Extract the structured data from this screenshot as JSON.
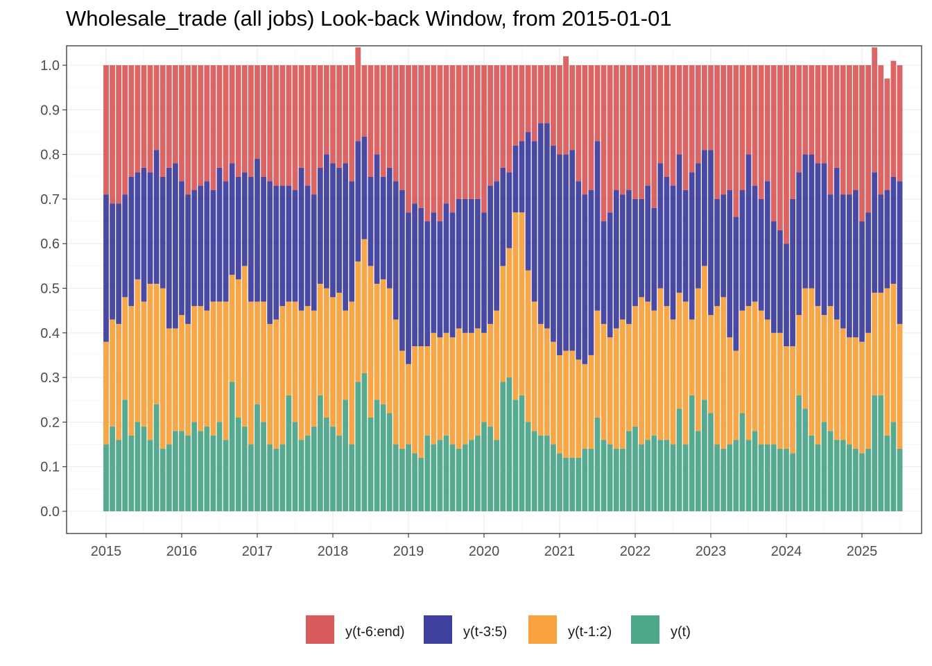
{
  "chart_data": {
    "type": "bar",
    "stacked": true,
    "title": "Wholesale_trade (all jobs) Look-back Window, from 2015-01-01",
    "xlabel": "",
    "ylabel": "",
    "ylim": [
      0,
      1.0
    ],
    "y_ticks": [
      "0.0",
      "0.1",
      "0.2",
      "0.3",
      "0.4",
      "0.5",
      "0.6",
      "0.7",
      "0.8",
      "0.9",
      "1.0"
    ],
    "x_ticks": [
      "2015",
      "2016",
      "2017",
      "2018",
      "2019",
      "2020",
      "2021",
      "2022",
      "2023",
      "2024",
      "2025"
    ],
    "x_start": "2015-01",
    "x_end": "2025-04",
    "frequency": "monthly",
    "grid": true,
    "legend_position": "bottom",
    "series": [
      {
        "name": "y(t)",
        "color": "#4da58a",
        "values": [
          0.15,
          0.19,
          0.16,
          0.25,
          0.17,
          0.2,
          0.19,
          0.16,
          0.24,
          0.14,
          0.15,
          0.18,
          0.18,
          0.17,
          0.2,
          0.18,
          0.19,
          0.17,
          0.2,
          0.16,
          0.29,
          0.21,
          0.19,
          0.15,
          0.24,
          0.2,
          0.15,
          0.14,
          0.15,
          0.26,
          0.2,
          0.16,
          0.17,
          0.19,
          0.26,
          0.21,
          0.19,
          0.17,
          0.25,
          0.15,
          0.29,
          0.31,
          0.21,
          0.25,
          0.24,
          0.22,
          0.15,
          0.14,
          0.15,
          0.13,
          0.12,
          0.17,
          0.15,
          0.16,
          0.17,
          0.15,
          0.14,
          0.15,
          0.16,
          0.17,
          0.2,
          0.19,
          0.16,
          0.29,
          0.3,
          0.25,
          0.26,
          0.2,
          0.18,
          0.17,
          0.17,
          0.15,
          0.13,
          0.12,
          0.12,
          0.12,
          0.14,
          0.14,
          0.21,
          0.16,
          0.15,
          0.14,
          0.14,
          0.18,
          0.19,
          0.15,
          0.16,
          0.17,
          0.16,
          0.16,
          0.15,
          0.23,
          0.15,
          0.26,
          0.18,
          0.25,
          0.22,
          0.15,
          0.14,
          0.15,
          0.16,
          0.22,
          0.16,
          0.18,
          0.15,
          0.15,
          0.15,
          0.14,
          0.14,
          0.13,
          0.26,
          0.23,
          0.17,
          0.15,
          0.2,
          0.18,
          0.16,
          0.16,
          0.15,
          0.14,
          0.13,
          0.14,
          0.26,
          0.26,
          0.17,
          0.2,
          0.14
        ]
      },
      {
        "name": "y(t-1:2)",
        "color": "#f8a23e",
        "values": [
          0.23,
          0.24,
          0.26,
          0.23,
          0.29,
          0.32,
          0.28,
          0.35,
          0.27,
          0.36,
          0.26,
          0.23,
          0.26,
          0.25,
          0.26,
          0.28,
          0.26,
          0.3,
          0.27,
          0.31,
          0.24,
          0.31,
          0.36,
          0.32,
          0.23,
          0.27,
          0.27,
          0.29,
          0.31,
          0.21,
          0.27,
          0.29,
          0.29,
          0.26,
          0.25,
          0.29,
          0.29,
          0.32,
          0.2,
          0.32,
          0.27,
          0.3,
          0.34,
          0.26,
          0.28,
          0.28,
          0.28,
          0.22,
          0.18,
          0.24,
          0.25,
          0.2,
          0.25,
          0.23,
          0.23,
          0.24,
          0.27,
          0.25,
          0.24,
          0.24,
          0.2,
          0.23,
          0.29,
          0.26,
          0.29,
          0.42,
          0.41,
          0.34,
          0.29,
          0.25,
          0.24,
          0.23,
          0.22,
          0.24,
          0.24,
          0.22,
          0.19,
          0.21,
          0.24,
          0.26,
          0.24,
          0.27,
          0.29,
          0.24,
          0.27,
          0.33,
          0.31,
          0.28,
          0.34,
          0.3,
          0.28,
          0.26,
          0.32,
          0.17,
          0.32,
          0.3,
          0.22,
          0.31,
          0.34,
          0.24,
          0.2,
          0.23,
          0.3,
          0.29,
          0.3,
          0.28,
          0.25,
          0.26,
          0.23,
          0.24,
          0.18,
          0.27,
          0.33,
          0.31,
          0.24,
          0.28,
          0.27,
          0.25,
          0.24,
          0.25,
          0.25,
          0.26,
          0.23,
          0.23,
          0.33,
          0.31,
          0.28
        ]
      },
      {
        "name": "y(t-3:5)",
        "color": "#3f3f9f",
        "values": [
          0.33,
          0.26,
          0.27,
          0.23,
          0.29,
          0.24,
          0.3,
          0.25,
          0.3,
          0.25,
          0.36,
          0.37,
          0.3,
          0.29,
          0.26,
          0.27,
          0.29,
          0.25,
          0.3,
          0.27,
          0.25,
          0.23,
          0.21,
          0.28,
          0.32,
          0.28,
          0.32,
          0.3,
          0.27,
          0.26,
          0.25,
          0.32,
          0.27,
          0.26,
          0.26,
          0.3,
          0.3,
          0.28,
          0.33,
          0.27,
          0.27,
          0.23,
          0.2,
          0.29,
          0.23,
          0.27,
          0.31,
          0.36,
          0.34,
          0.32,
          0.31,
          0.28,
          0.27,
          0.26,
          0.29,
          0.28,
          0.29,
          0.3,
          0.3,
          0.29,
          0.27,
          0.31,
          0.29,
          0.22,
          0.17,
          0.15,
          0.16,
          0.31,
          0.36,
          0.45,
          0.46,
          0.44,
          0.45,
          0.44,
          0.45,
          0.4,
          0.38,
          0.37,
          0.38,
          0.23,
          0.28,
          0.31,
          0.28,
          0.3,
          0.24,
          0.22,
          0.26,
          0.23,
          0.28,
          0.29,
          0.3,
          0.31,
          0.25,
          0.33,
          0.28,
          0.26,
          0.37,
          0.24,
          0.23,
          0.33,
          0.3,
          0.27,
          0.34,
          0.26,
          0.25,
          0.31,
          0.25,
          0.23,
          0.23,
          0.33,
          0.32,
          0.3,
          0.3,
          0.32,
          0.34,
          0.25,
          0.34,
          0.3,
          0.32,
          0.33,
          0.27,
          0.27,
          0.27,
          0.22,
          0.22,
          0.24,
          0.32
        ]
      },
      {
        "name": "y(t-6:end)",
        "color": "#d95c5c",
        "values": [
          0.29,
          0.31,
          0.31,
          0.29,
          0.25,
          0.24,
          0.23,
          0.24,
          0.19,
          0.25,
          0.23,
          0.22,
          0.26,
          0.29,
          0.28,
          0.27,
          0.26,
          0.28,
          0.23,
          0.26,
          0.22,
          0.25,
          0.24,
          0.25,
          0.21,
          0.25,
          0.26,
          0.27,
          0.27,
          0.27,
          0.28,
          0.23,
          0.27,
          0.29,
          0.23,
          0.2,
          0.22,
          0.23,
          0.22,
          0.26,
          0.21,
          0.16,
          0.25,
          0.2,
          0.25,
          0.23,
          0.26,
          0.28,
          0.33,
          0.31,
          0.32,
          0.35,
          0.33,
          0.35,
          0.31,
          0.33,
          0.3,
          0.3,
          0.3,
          0.3,
          0.33,
          0.27,
          0.26,
          0.23,
          0.24,
          0.18,
          0.17,
          0.15,
          0.17,
          0.13,
          0.13,
          0.18,
          0.2,
          0.22,
          0.19,
          0.26,
          0.29,
          0.28,
          0.17,
          0.35,
          0.33,
          0.28,
          0.29,
          0.28,
          0.3,
          0.3,
          0.27,
          0.32,
          0.22,
          0.25,
          0.27,
          0.2,
          0.28,
          0.24,
          0.22,
          0.19,
          0.19,
          0.3,
          0.29,
          0.28,
          0.34,
          0.28,
          0.2,
          0.27,
          0.3,
          0.26,
          0.35,
          0.37,
          0.4,
          0.3,
          0.24,
          0.2,
          0.2,
          0.22,
          0.22,
          0.29,
          0.23,
          0.29,
          0.29,
          0.28,
          0.35,
          0.33,
          0.28,
          0.29,
          0.25,
          0.26,
          0.26
        ]
      }
    ],
    "legend": [
      "y(t-6:end)",
      "y(t-3:5)",
      "y(t-1:2)",
      "y(t)"
    ]
  }
}
